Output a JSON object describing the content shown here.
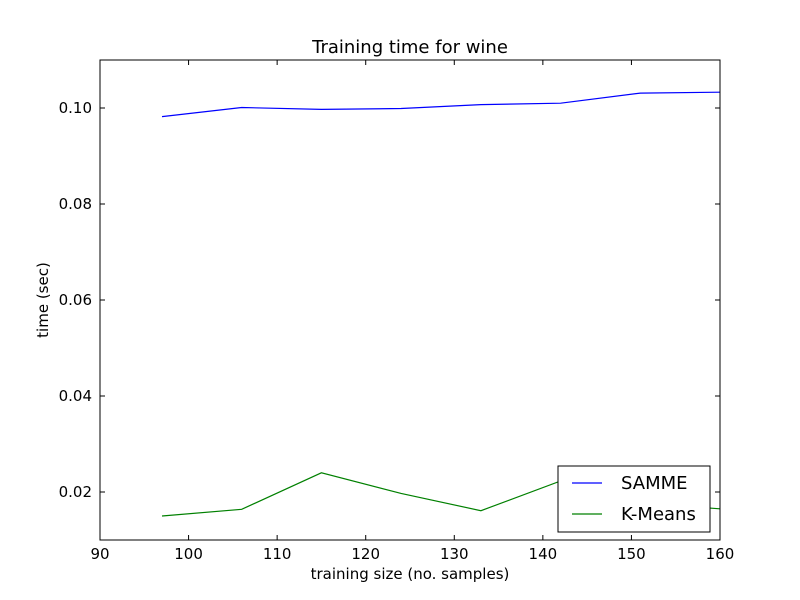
{
  "chart_data": {
    "type": "line",
    "title": "Training time for wine",
    "xlabel": "training size (no. samples)",
    "ylabel": "time (sec)",
    "xlim": [
      90,
      160
    ],
    "ylim": [
      0.01,
      0.11
    ],
    "xticks": [
      90,
      100,
      110,
      120,
      130,
      140,
      150,
      160
    ],
    "yticks": [
      0.02,
      0.04,
      0.06,
      0.08,
      0.1
    ],
    "ytick_labels": [
      "0.02",
      "0.04",
      "0.06",
      "0.08",
      "0.10"
    ],
    "grid": false,
    "legend_position": "lower-right",
    "x": [
      97,
      106,
      115,
      124,
      133,
      142,
      151,
      160
    ],
    "series": [
      {
        "name": "SAMME",
        "color": "#0000ff",
        "values": [
          0.0982,
          0.1001,
          0.0997,
          0.0999,
          0.1007,
          0.101,
          0.1031,
          0.1033
        ]
      },
      {
        "name": "K-Means",
        "color": "#008000",
        "values": [
          0.015,
          0.0164,
          0.024,
          0.0197,
          0.0161,
          0.0223,
          0.0177,
          0.0165
        ]
      }
    ]
  }
}
